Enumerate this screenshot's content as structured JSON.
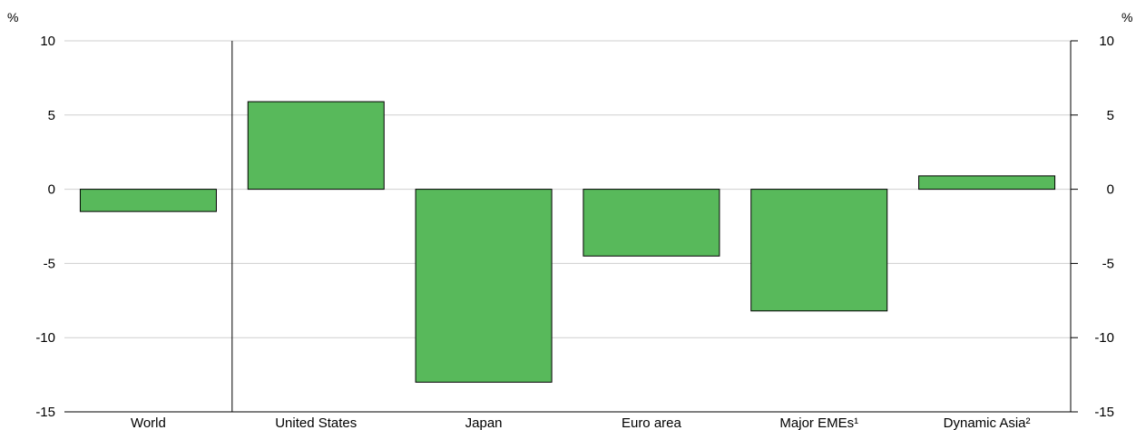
{
  "chart_data": {
    "type": "bar",
    "categories": [
      "World",
      "United States",
      "Japan",
      "Euro area",
      "Major EMEs¹",
      "Dynamic Asia²"
    ],
    "values": [
      -1.5,
      5.9,
      -13.0,
      -4.5,
      -8.2,
      0.9
    ],
    "ylim": [
      -15,
      10
    ],
    "yticks": [
      10,
      5,
      0,
      -5,
      -10,
      -15
    ],
    "ytick_labels": [
      "10",
      "5",
      "0",
      "-5",
      "-10",
      "-15"
    ],
    "left_unit": "%",
    "right_unit": "%",
    "grid": true,
    "separator_after_category": 0,
    "colors": {
      "bar_fill": "#58b95b",
      "bar_stroke": "#000000",
      "grid": "#cfcfcf"
    }
  }
}
